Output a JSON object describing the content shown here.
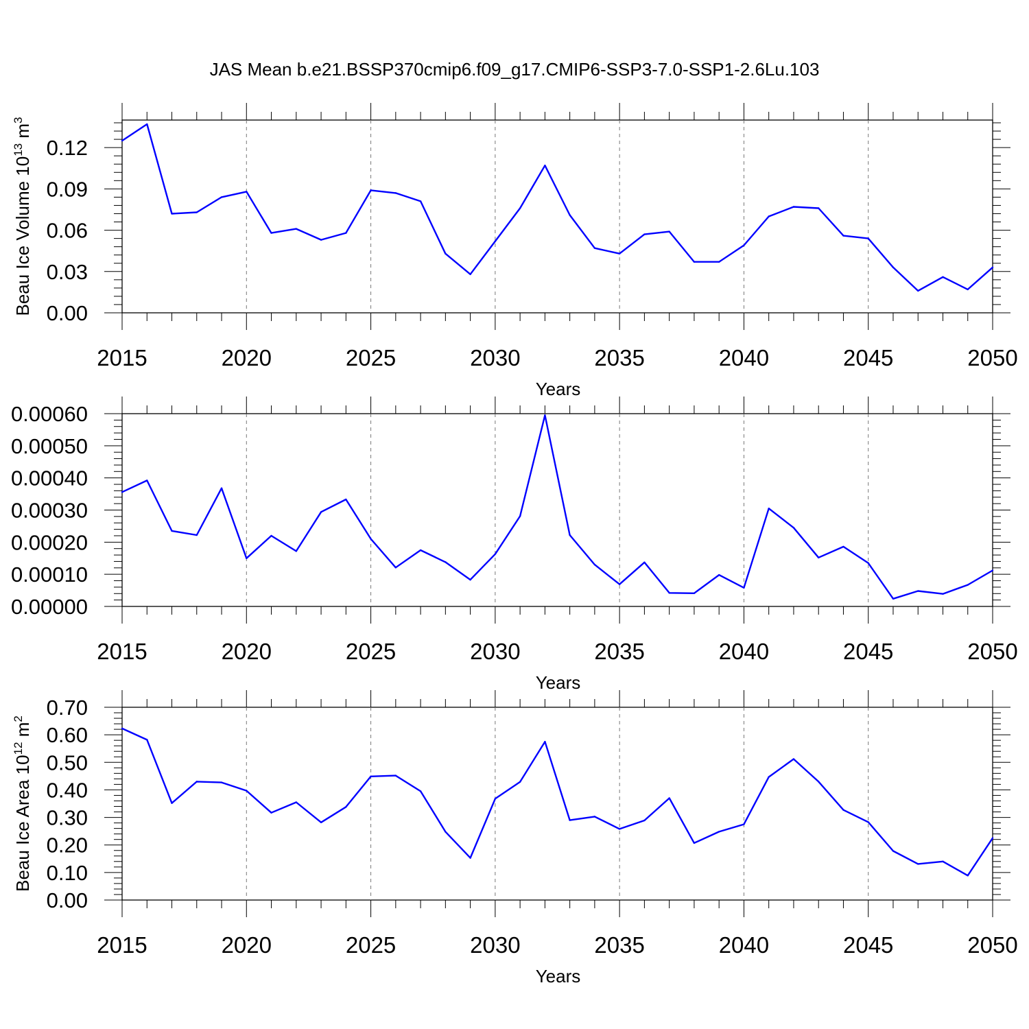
{
  "figure_title": "JAS Mean b.e21.BSSP370cmip6.f09_g17.CMIP6-SSP3-7.0-SSP1-2.6Lu.103",
  "colors": {
    "line": "#0000ff",
    "axes": "#000000",
    "grid": "#777777"
  },
  "chart_data": [
    {
      "type": "line",
      "ylabel_base": "Beau Ice Volume 10",
      "ylabel_exp": "13",
      "ylabel_unit": " m",
      "ylabel_unit_exp": "3",
      "xlabel": "Years",
      "xlim": [
        2015,
        2050
      ],
      "ylim": [
        0.0,
        0.14
      ],
      "yticks": [
        "0.00",
        "0.03",
        "0.06",
        "0.09",
        "0.12"
      ],
      "ytick_values": [
        0.0,
        0.03,
        0.06,
        0.09,
        0.12
      ],
      "xticks": [
        "2015",
        "2020",
        "2025",
        "2030",
        "2035",
        "2040",
        "2045",
        "2050"
      ],
      "grid": "vertical dashed at major x ticks",
      "x": [
        2015,
        2016,
        2017,
        2018,
        2019,
        2020,
        2021,
        2022,
        2023,
        2024,
        2025,
        2026,
        2027,
        2028,
        2029,
        2030,
        2031,
        2032,
        2033,
        2034,
        2035,
        2036,
        2037,
        2038,
        2039,
        2040,
        2041,
        2042,
        2043,
        2044,
        2045,
        2046,
        2047,
        2048,
        2049,
        2050
      ],
      "values": [
        0.125,
        0.137,
        0.072,
        0.073,
        0.084,
        0.088,
        0.058,
        0.061,
        0.053,
        0.058,
        0.089,
        0.087,
        0.081,
        0.043,
        0.028,
        0.052,
        0.076,
        0.107,
        0.071,
        0.047,
        0.043,
        0.057,
        0.059,
        0.037,
        0.037,
        0.049,
        0.07,
        0.077,
        0.076,
        0.056,
        0.054,
        0.033,
        0.016,
        0.026,
        0.017,
        0.033
      ]
    },
    {
      "type": "line",
      "ylabel_base": "",
      "xlabel": "Years",
      "xlim": [
        2015,
        2050
      ],
      "ylim": [
        0.0,
        0.0006
      ],
      "yticks": [
        "0.00000",
        "0.00010",
        "0.00020",
        "0.00030",
        "0.00040",
        "0.00050",
        "0.00060"
      ],
      "ytick_values": [
        0.0,
        0.0001,
        0.0002,
        0.0003,
        0.0004,
        0.0005,
        0.0006
      ],
      "xticks": [
        "2015",
        "2020",
        "2025",
        "2030",
        "2035",
        "2040",
        "2045",
        "2050"
      ],
      "grid": "vertical dashed at major x ticks",
      "x": [
        2015,
        2016,
        2017,
        2018,
        2019,
        2020,
        2021,
        2022,
        2023,
        2024,
        2025,
        2026,
        2027,
        2028,
        2029,
        2030,
        2031,
        2032,
        2033,
        2034,
        2035,
        2036,
        2037,
        2038,
        2039,
        2040,
        2041,
        2042,
        2043,
        2044,
        2045,
        2046,
        2047,
        2048,
        2049,
        2050
      ],
      "values": [
        0.000356,
        0.000392,
        0.000235,
        0.000222,
        0.000368,
        0.00015,
        0.00022,
        0.000172,
        0.000294,
        0.000333,
        0.00021,
        0.000121,
        0.000175,
        0.000138,
        8.3e-05,
        0.000163,
        0.000281,
        0.000595,
        0.000222,
        0.00013,
        6.9e-05,
        0.000137,
        4.2e-05,
        4.1e-05,
        9.8e-05,
        5.8e-05,
        0.000305,
        0.000245,
        0.000152,
        0.000186,
        0.000135,
        2.4e-05,
        4.8e-05,
        3.9e-05,
        6.7e-05,
        0.000112
      ]
    },
    {
      "type": "line",
      "ylabel_base": "Beau Ice Area 10",
      "ylabel_exp": "12",
      "ylabel_unit": " m",
      "ylabel_unit_exp": "2",
      "xlabel": "Years",
      "xlim": [
        2015,
        2050
      ],
      "ylim": [
        0.0,
        0.7
      ],
      "yticks": [
        "0.00",
        "0.10",
        "0.20",
        "0.30",
        "0.40",
        "0.50",
        "0.60",
        "0.70"
      ],
      "ytick_values": [
        0.0,
        0.1,
        0.2,
        0.3,
        0.4,
        0.5,
        0.6,
        0.7
      ],
      "xticks": [
        "2015",
        "2020",
        "2025",
        "2030",
        "2035",
        "2040",
        "2045",
        "2050"
      ],
      "grid": "vertical dashed at major x ticks",
      "x": [
        2015,
        2016,
        2017,
        2018,
        2019,
        2020,
        2021,
        2022,
        2023,
        2024,
        2025,
        2026,
        2027,
        2028,
        2029,
        2030,
        2031,
        2032,
        2033,
        2034,
        2035,
        2036,
        2037,
        2038,
        2039,
        2040,
        2041,
        2042,
        2043,
        2044,
        2045,
        2046,
        2047,
        2048,
        2049,
        2050
      ],
      "values": [
        0.623,
        0.582,
        0.352,
        0.43,
        0.427,
        0.397,
        0.317,
        0.355,
        0.282,
        0.338,
        0.449,
        0.452,
        0.395,
        0.248,
        0.153,
        0.368,
        0.429,
        0.575,
        0.29,
        0.303,
        0.258,
        0.289,
        0.37,
        0.207,
        0.248,
        0.275,
        0.447,
        0.512,
        0.43,
        0.327,
        0.283,
        0.178,
        0.131,
        0.14,
        0.089,
        0.225
      ]
    }
  ]
}
